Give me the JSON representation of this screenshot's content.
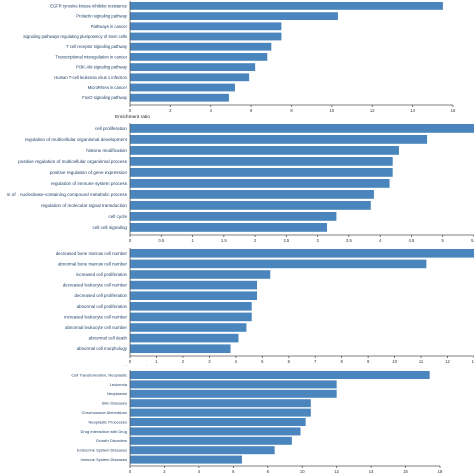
{
  "chart_data": [
    {
      "type": "bar",
      "orientation": "horizontal",
      "xlabel": "Enrichment ratio",
      "xlim": [
        0,
        16
      ],
      "xticks": [
        0,
        2,
        4,
        6,
        8,
        10,
        12,
        14,
        16
      ],
      "categories": [
        "EGFR tyrosine kinase inhibitor resistance",
        "Prolactin signaling pathway",
        "Pathways in cancer",
        "Signaling pathways regulating pluripotency of stem cells",
        "T cell receptor signaling pathway",
        "Transcriptional misregulation in cancer",
        "PI3K-Akt signaling pathway",
        "Human T-cell leukemia virus 1 infection",
        "MicroRNAs in cancer",
        "FoxO signaling pathway"
      ],
      "values": [
        15.5,
        10.3,
        7.5,
        7.5,
        7.0,
        6.8,
        6.2,
        5.9,
        5.2,
        4.9
      ],
      "grid": false
    },
    {
      "type": "bar",
      "orientation": "horizontal",
      "xlabel": "Enrichment ratio",
      "xlim": [
        0,
        5.5
      ],
      "xticks": [
        "0",
        "0.5",
        "1",
        "1.5",
        "2",
        "2.5",
        "3",
        "3.5",
        "4",
        "4.5",
        "5",
        "5.5"
      ],
      "categories": [
        "cell proliferation",
        "regulation of multicellular organismal development",
        "histone modification",
        "positive regulation of multicellular organismal process",
        "positive regulation of gene expression",
        "regulation of immune system process",
        "nucleobase-containing compound metabolic process",
        "regulation of molecular signal transduction",
        "cell cycle",
        "cell cell signaling"
      ],
      "category_prefixes": [
        "",
        "",
        "",
        "",
        "",
        "",
        "m of ",
        "",
        "",
        ""
      ],
      "values": [
        5.5,
        4.75,
        4.3,
        4.2,
        4.2,
        4.15,
        3.9,
        3.85,
        3.3,
        3.15
      ],
      "grid": false
    },
    {
      "type": "bar",
      "orientation": "horizontal",
      "xlabel": "Enrichment ratio",
      "xlim": [
        0,
        13
      ],
      "xticks": [
        0,
        1,
        2,
        3,
        4,
        5,
        6,
        7,
        8,
        9,
        10,
        11,
        12,
        13
      ],
      "categories": [
        "decreased bone marrow cell number",
        "abnormal bone marrow cell number",
        "increased cell proliferation",
        "decreased leukocyte cell number",
        "decreased cell proliferation",
        "abnormal cell proliferation",
        "increased leukocyte cell number",
        "abnormal leukocyte cell number",
        "abnormal cell death",
        "abnormal cell morphology"
      ],
      "values": [
        13.0,
        11.2,
        5.3,
        4.8,
        4.8,
        4.6,
        4.6,
        4.4,
        4.1,
        3.8
      ],
      "grid": false
    },
    {
      "type": "bar",
      "orientation": "horizontal",
      "xlabel": "Enrichment ratio",
      "xlim": [
        0,
        18
      ],
      "xticks": [
        0,
        2,
        4,
        6,
        8,
        10,
        12,
        14,
        16,
        18
      ],
      "categories": [
        "Cell Transformation, Neoplastic",
        "Leukemia",
        "Neoplasms",
        "Skin Diseases",
        "Chromosome Aberrations",
        "Neoplastic Processes",
        "Drug Interaction with Drug",
        "Growth Disorders",
        "Endocrine System Diseases",
        "Immune System Diseases"
      ],
      "values": [
        17.4,
        12.0,
        12.0,
        10.5,
        10.5,
        10.2,
        9.9,
        9.4,
        8.4,
        6.5
      ],
      "grid": false
    }
  ]
}
